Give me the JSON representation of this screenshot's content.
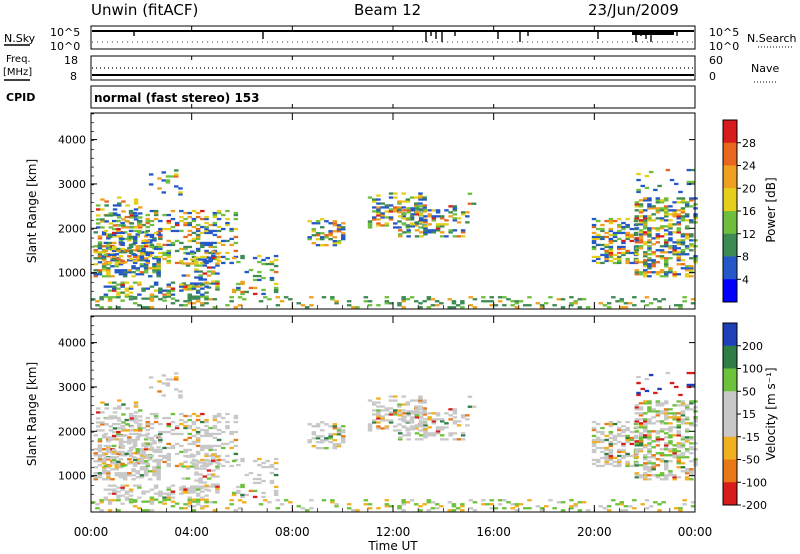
{
  "header": {
    "station": "Unwin (fitACF)",
    "beam": "Beam 12",
    "date": "23/Jun/2009"
  },
  "strip_labels": {
    "nsky": "N.Sky",
    "nsky_ticks": [
      "10^5",
      "10^0"
    ],
    "nsearch": "N.Search",
    "nsearch_ticks": [
      "10^5",
      "10^0"
    ],
    "freq": "Freq.",
    "freq_unit": "[MHz]",
    "freq_ticks": [
      "18",
      "8"
    ],
    "nave": "Nave",
    "nave_ticks": [
      "60",
      "0"
    ],
    "cpid": "CPID",
    "cpid_value": "normal (fast stereo) 153"
  },
  "chart_data": [
    {
      "type": "heatmap",
      "name": "power",
      "ylabel": "Slant Range [km]",
      "yticks": [
        "1000",
        "2000",
        "3000",
        "4000"
      ],
      "ylim": [
        180,
        4600
      ],
      "colorbar_label": "Power [dB]",
      "colorbar_ticks": [
        "4",
        "8",
        "12",
        "16",
        "20",
        "24",
        "28"
      ],
      "colors": [
        "#0000ff",
        "#2457c8",
        "#3d8a54",
        "#6fbf3f",
        "#e6cf1a",
        "#f0a020",
        "#e8661e",
        "#d81b1b"
      ],
      "vlim": [
        0,
        32
      ]
    },
    {
      "type": "heatmap",
      "name": "velocity",
      "ylabel": "Slant Range [km]",
      "yticks": [
        "1000",
        "2000",
        "3000",
        "4000"
      ],
      "ylim": [
        180,
        4600
      ],
      "colorbar_label": "Velocity [m s⁻¹]",
      "colorbar_ticks": [
        "200",
        "100",
        "50",
        "15",
        "-15",
        "-50",
        "-100",
        "-200"
      ],
      "colors": [
        "#1f3fb8",
        "#2e7d44",
        "#6cc23a",
        "#c8c8c8",
        "#c8c8c8",
        "#f0b020",
        "#e87818",
        "#d81b1b"
      ],
      "vlim": [
        -250,
        250
      ]
    }
  ],
  "xaxis": {
    "label": "Time UT",
    "ticks": [
      "00:00",
      "04:00",
      "08:00",
      "12:00",
      "16:00",
      "20:00",
      "00:00"
    ]
  },
  "colors": {
    "axis": "#000000",
    "background": "#ffffff"
  }
}
